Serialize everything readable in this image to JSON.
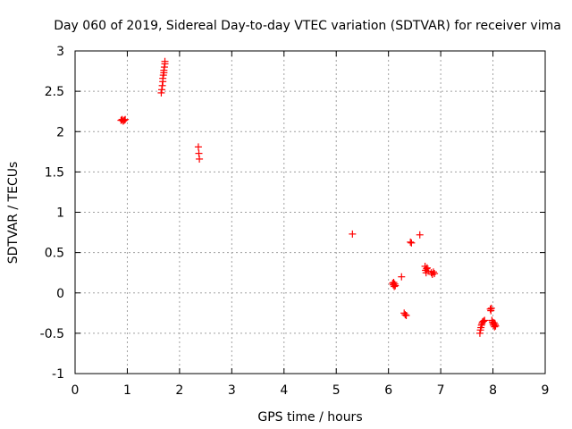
{
  "chart_data": {
    "type": "scatter",
    "title": "Day 060 of 2019, Sidereal Day-to-day VTEC variation (SDTVAR) for receiver vima",
    "xlabel": "GPS time / hours",
    "ylabel": "SDTVAR / TECUs",
    "xlim": [
      0,
      9
    ],
    "ylim": [
      -1,
      3
    ],
    "xticks": [
      "0",
      "1",
      "2",
      "3",
      "4",
      "5",
      "6",
      "7",
      "8",
      "9"
    ],
    "yticks": [
      "-1",
      "-0.5",
      "0",
      "0.5",
      "1",
      "1.5",
      "2",
      "2.5",
      "3"
    ],
    "grid": true,
    "marker": "+",
    "color": "#ff0000",
    "series": [
      {
        "name": "SDTVAR",
        "points": [
          [
            0.88,
            2.14
          ],
          [
            0.9,
            2.15
          ],
          [
            0.92,
            2.13
          ],
          [
            0.94,
            2.14
          ],
          [
            0.96,
            2.15
          ],
          [
            1.65,
            2.48
          ],
          [
            1.66,
            2.52
          ],
          [
            1.67,
            2.57
          ],
          [
            1.68,
            2.62
          ],
          [
            1.68,
            2.66
          ],
          [
            1.69,
            2.7
          ],
          [
            1.7,
            2.73
          ],
          [
            1.7,
            2.76
          ],
          [
            1.71,
            2.8
          ],
          [
            1.72,
            2.84
          ],
          [
            1.72,
            2.87
          ],
          [
            2.36,
            1.81
          ],
          [
            2.37,
            1.73
          ],
          [
            2.38,
            1.66
          ],
          [
            5.31,
            0.73
          ],
          [
            6.08,
            0.12
          ],
          [
            6.09,
            0.1
          ],
          [
            6.1,
            0.13
          ],
          [
            6.11,
            0.08
          ],
          [
            6.12,
            0.11
          ],
          [
            6.13,
            0.09
          ],
          [
            6.25,
            0.2
          ],
          [
            6.3,
            -0.25
          ],
          [
            6.32,
            -0.27
          ],
          [
            6.34,
            -0.28
          ],
          [
            6.42,
            0.63
          ],
          [
            6.44,
            0.62
          ],
          [
            6.6,
            0.72
          ],
          [
            6.7,
            0.33
          ],
          [
            6.71,
            0.28
          ],
          [
            6.72,
            0.25
          ],
          [
            6.73,
            0.3
          ],
          [
            6.74,
            0.31
          ],
          [
            6.76,
            0.27
          ],
          [
            6.82,
            0.25
          ],
          [
            6.84,
            0.23
          ],
          [
            6.86,
            0.26
          ],
          [
            6.88,
            0.24
          ],
          [
            7.75,
            -0.5
          ],
          [
            7.76,
            -0.46
          ],
          [
            7.77,
            -0.43
          ],
          [
            7.78,
            -0.4
          ],
          [
            7.79,
            -0.38
          ],
          [
            7.8,
            -0.36
          ],
          [
            7.82,
            -0.35
          ],
          [
            7.84,
            -0.34
          ],
          [
            7.95,
            -0.2
          ],
          [
            7.96,
            -0.22
          ],
          [
            7.97,
            -0.19
          ],
          [
            7.98,
            -0.34
          ],
          [
            7.99,
            -0.36
          ],
          [
            8.0,
            -0.38
          ],
          [
            8.01,
            -0.4
          ],
          [
            8.02,
            -0.37
          ],
          [
            8.03,
            -0.42
          ],
          [
            8.04,
            -0.39
          ],
          [
            8.05,
            -0.41
          ]
        ]
      }
    ]
  }
}
